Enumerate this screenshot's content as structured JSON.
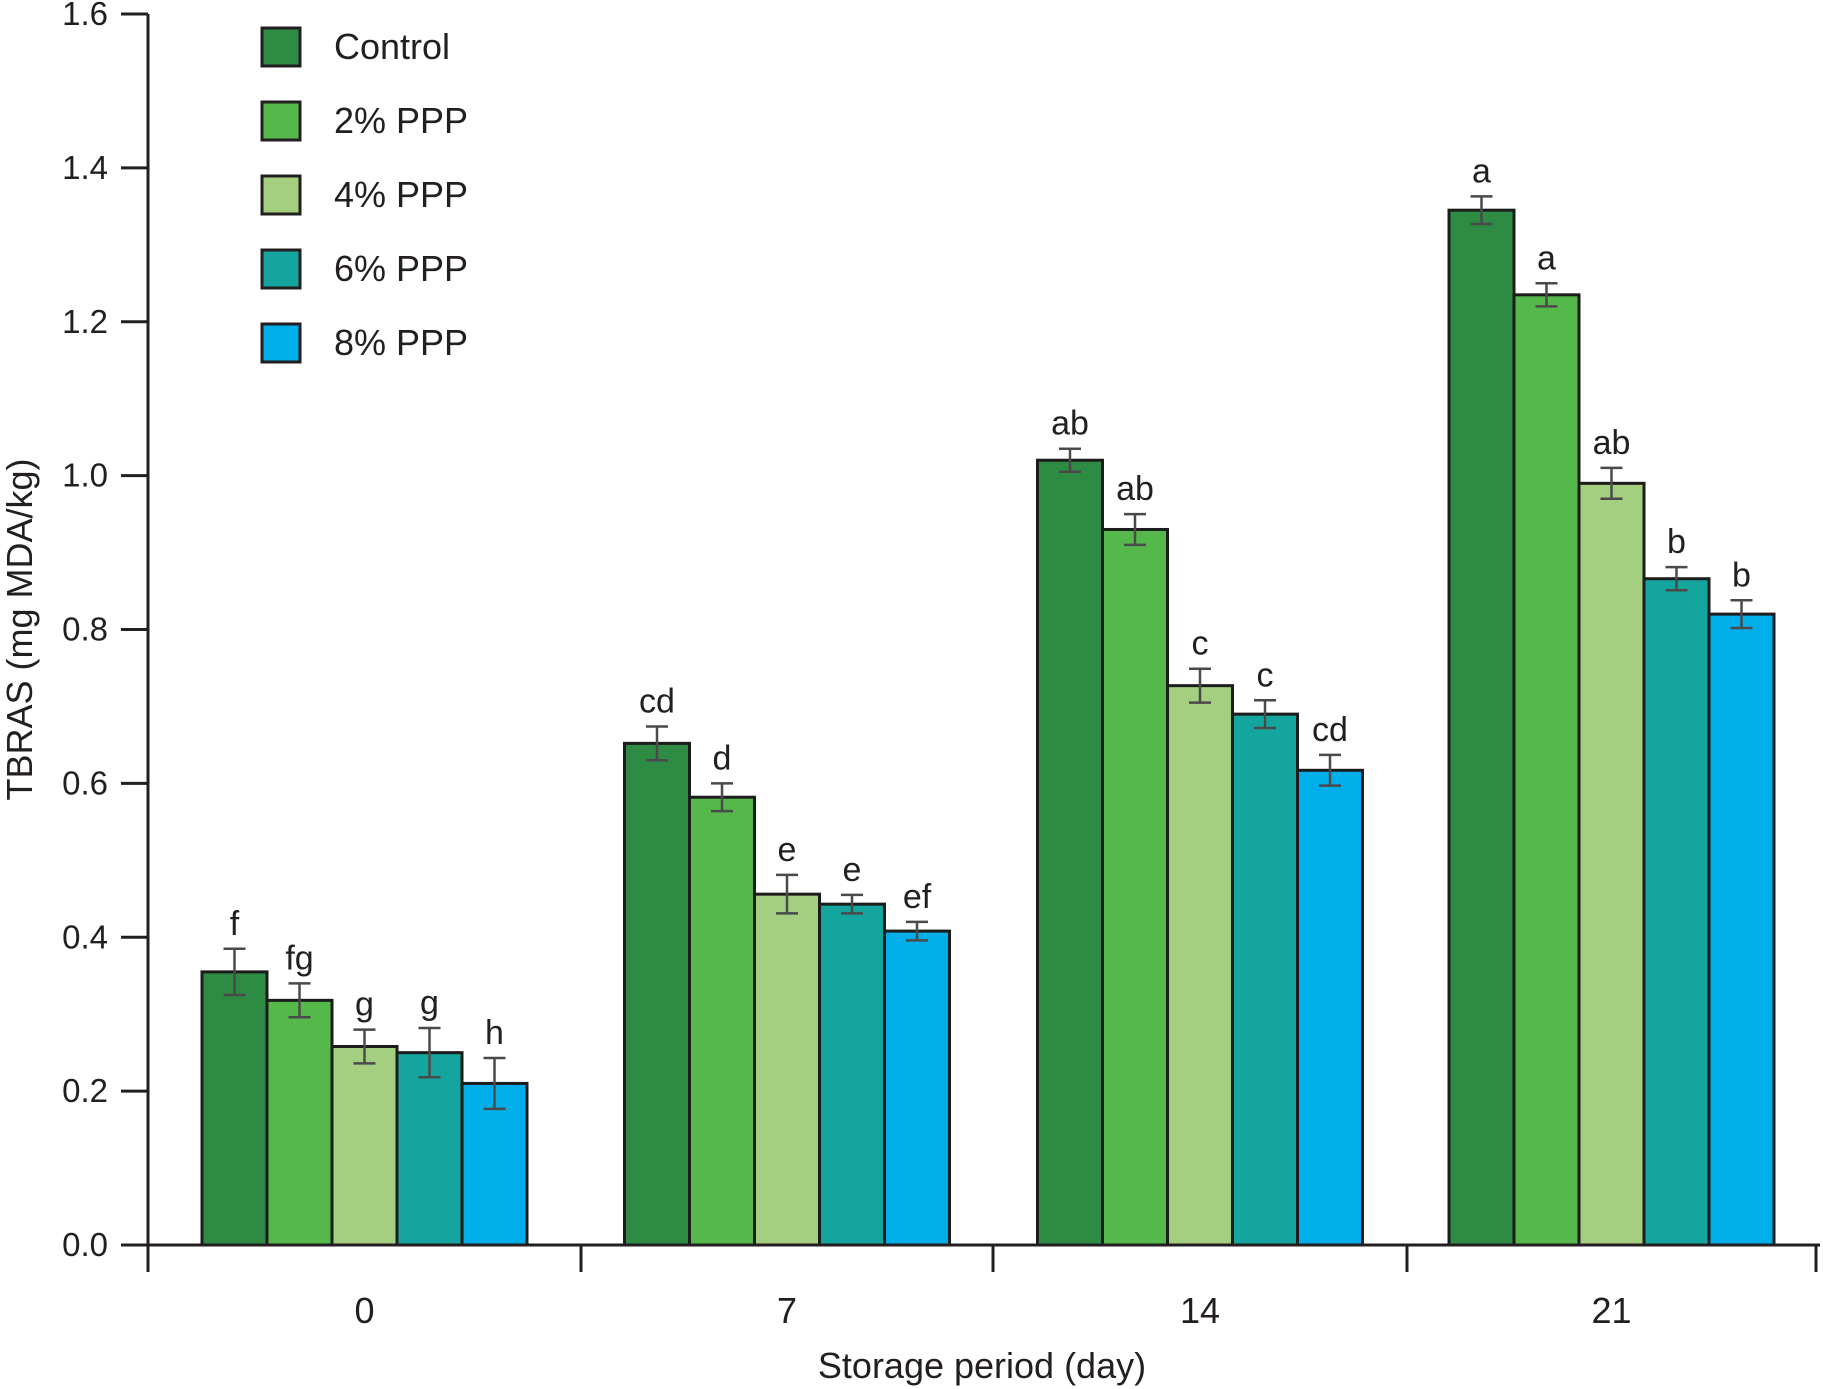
{
  "chart_data": {
    "type": "bar",
    "title": "",
    "xlabel": "Storage period (day)",
    "ylabel": "TBRAS (mg MDA/kg)",
    "categories": [
      "0",
      "7",
      "14",
      "21"
    ],
    "y_axis": {
      "min": 0.0,
      "max": 1.6,
      "step": 0.2,
      "tick_labels": [
        "0.0",
        "0.2",
        "0.4",
        "0.6",
        "0.8",
        "1.0",
        "1.2",
        "1.4",
        "1.6"
      ]
    },
    "grid": false,
    "legend": {
      "position": "top-left",
      "entries": [
        "Control",
        "2% PPP",
        "4% PPP",
        "6% PPP",
        "8% PPP"
      ]
    },
    "series": [
      {
        "name": "Control",
        "color": "#2e8b44",
        "values": [
          0.355,
          0.652,
          1.02,
          1.345
        ],
        "errors": [
          0.03,
          0.022,
          0.015,
          0.018
        ],
        "sig_letters": [
          "f",
          "cd",
          "ab",
          "a"
        ]
      },
      {
        "name": "2% PPP",
        "color": "#55b84a",
        "values": [
          0.318,
          0.582,
          0.93,
          1.235
        ],
        "errors": [
          0.022,
          0.018,
          0.02,
          0.015
        ],
        "sig_letters": [
          "fg",
          "d",
          "ab",
          "a"
        ]
      },
      {
        "name": "4% PPP",
        "color": "#a4cf80",
        "values": [
          0.258,
          0.456,
          0.727,
          0.99
        ],
        "errors": [
          0.022,
          0.025,
          0.022,
          0.02
        ],
        "sig_letters": [
          "g",
          "e",
          "c",
          "ab"
        ]
      },
      {
        "name": "6% PPP",
        "color": "#14a69e",
        "values": [
          0.25,
          0.443,
          0.69,
          0.866
        ],
        "errors": [
          0.032,
          0.012,
          0.018,
          0.015
        ],
        "sig_letters": [
          "g",
          "e",
          "c",
          "b"
        ]
      },
      {
        "name": "8% PPP",
        "color": "#00aeea",
        "values": [
          0.21,
          0.408,
          0.617,
          0.82
        ],
        "errors": [
          0.033,
          0.012,
          0.02,
          0.018
        ],
        "sig_letters": [
          "h",
          "ef",
          "cd",
          "b"
        ]
      }
    ],
    "axis_color": "#231f20",
    "bar_outline_color": "#1c1c1c",
    "error_bar_color": "#4a4a4a",
    "text_color": "#231f20"
  }
}
